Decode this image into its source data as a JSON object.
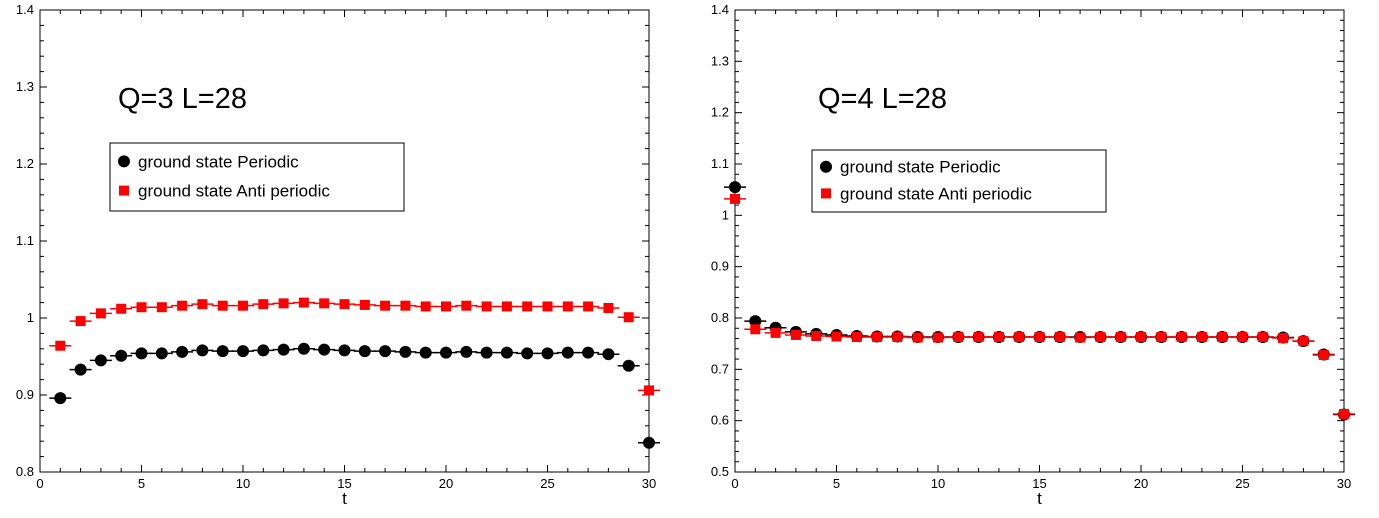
{
  "chart_data": [
    {
      "type": "scatter",
      "annotation": "Q=3 L=28",
      "xlabel": "t",
      "ylabel": "",
      "xlim": [
        0,
        30
      ],
      "ylim": [
        0.8,
        1.4
      ],
      "x_ticks": [
        0,
        5,
        10,
        15,
        20,
        25,
        30
      ],
      "y_ticks": [
        0.8,
        0.9,
        1,
        1.1,
        1.2,
        1.3,
        1.4
      ],
      "y_tick_labels": [
        "0.8",
        "0.9",
        "1",
        "1.1",
        "1.2",
        "1.3",
        "1.4"
      ],
      "legend_position": "upper-left",
      "series": [
        {
          "name": "ground state Periodic",
          "marker": "circle",
          "color": "#000000",
          "x": [
            1,
            2,
            3,
            4,
            5,
            6,
            7,
            8,
            9,
            10,
            11,
            12,
            13,
            14,
            15,
            16,
            17,
            18,
            19,
            20,
            21,
            22,
            23,
            24,
            25,
            26,
            27,
            28,
            29,
            30
          ],
          "y": [
            0.896,
            0.933,
            0.945,
            0.951,
            0.954,
            0.954,
            0.956,
            0.958,
            0.957,
            0.957,
            0.958,
            0.959,
            0.96,
            0.959,
            0.958,
            0.957,
            0.957,
            0.956,
            0.955,
            0.955,
            0.956,
            0.955,
            0.955,
            0.954,
            0.954,
            0.955,
            0.955,
            0.953,
            0.938,
            0.838
          ]
        },
        {
          "name": "ground state Anti periodic",
          "marker": "square",
          "color": "#ff0000",
          "x": [
            1,
            2,
            3,
            4,
            5,
            6,
            7,
            8,
            9,
            10,
            11,
            12,
            13,
            14,
            15,
            16,
            17,
            18,
            19,
            20,
            21,
            22,
            23,
            24,
            25,
            26,
            27,
            28,
            29,
            30
          ],
          "y": [
            0.964,
            0.996,
            1.006,
            1.012,
            1.014,
            1.014,
            1.016,
            1.018,
            1.016,
            1.016,
            1.018,
            1.019,
            1.02,
            1.019,
            1.018,
            1.017,
            1.016,
            1.016,
            1.015,
            1.015,
            1.016,
            1.015,
            1.015,
            1.015,
            1.015,
            1.015,
            1.015,
            1.013,
            1.001,
            0.906
          ]
        }
      ]
    },
    {
      "type": "scatter",
      "annotation": "Q=4 L=28",
      "xlabel": "t",
      "ylabel": "",
      "xlim": [
        0,
        30
      ],
      "ylim": [
        0.5,
        1.4
      ],
      "x_ticks": [
        0,
        5,
        10,
        15,
        20,
        25,
        30
      ],
      "y_ticks": [
        0.5,
        0.6,
        0.7,
        0.8,
        0.9,
        1,
        1.1,
        1.2,
        1.3,
        1.4
      ],
      "y_tick_labels": [
        "0.5",
        "0.6",
        "0.7",
        "0.8",
        "0.9",
        "1",
        "1.1",
        "1.2",
        "1.3",
        "1.4"
      ],
      "legend_position": "upper-left",
      "series": [
        {
          "name": "ground state Periodic",
          "marker": "circle",
          "color": "#000000",
          "x": [
            0,
            1,
            2,
            3,
            4,
            5,
            6,
            7,
            8,
            9,
            10,
            11,
            12,
            13,
            14,
            15,
            16,
            17,
            18,
            19,
            20,
            21,
            22,
            23,
            24,
            25,
            26,
            27,
            28,
            29,
            30
          ],
          "y": [
            1.055,
            0.794,
            0.781,
            0.773,
            0.769,
            0.767,
            0.765,
            0.764,
            0.764,
            0.763,
            0.763,
            0.763,
            0.763,
            0.763,
            0.763,
            0.763,
            0.763,
            0.763,
            0.763,
            0.763,
            0.763,
            0.763,
            0.763,
            0.763,
            0.763,
            0.763,
            0.763,
            0.762,
            0.755,
            0.729,
            0.612
          ]
        },
        {
          "name": "ground state Anti periodic",
          "marker": "square",
          "color": "#ff0000",
          "x": [
            0,
            1,
            2,
            3,
            4,
            5,
            6,
            7,
            8,
            9,
            10,
            11,
            12,
            13,
            14,
            15,
            16,
            17,
            18,
            19,
            20,
            21,
            22,
            23,
            24,
            25,
            26,
            27,
            28,
            29,
            30
          ],
          "y": [
            1.032,
            0.778,
            0.771,
            0.767,
            0.765,
            0.764,
            0.763,
            0.763,
            0.763,
            0.762,
            0.762,
            0.763,
            0.763,
            0.763,
            0.763,
            0.763,
            0.763,
            0.762,
            0.763,
            0.763,
            0.763,
            0.763,
            0.763,
            0.763,
            0.763,
            0.763,
            0.763,
            0.761,
            0.755,
            0.728,
            0.613
          ]
        }
      ]
    }
  ]
}
